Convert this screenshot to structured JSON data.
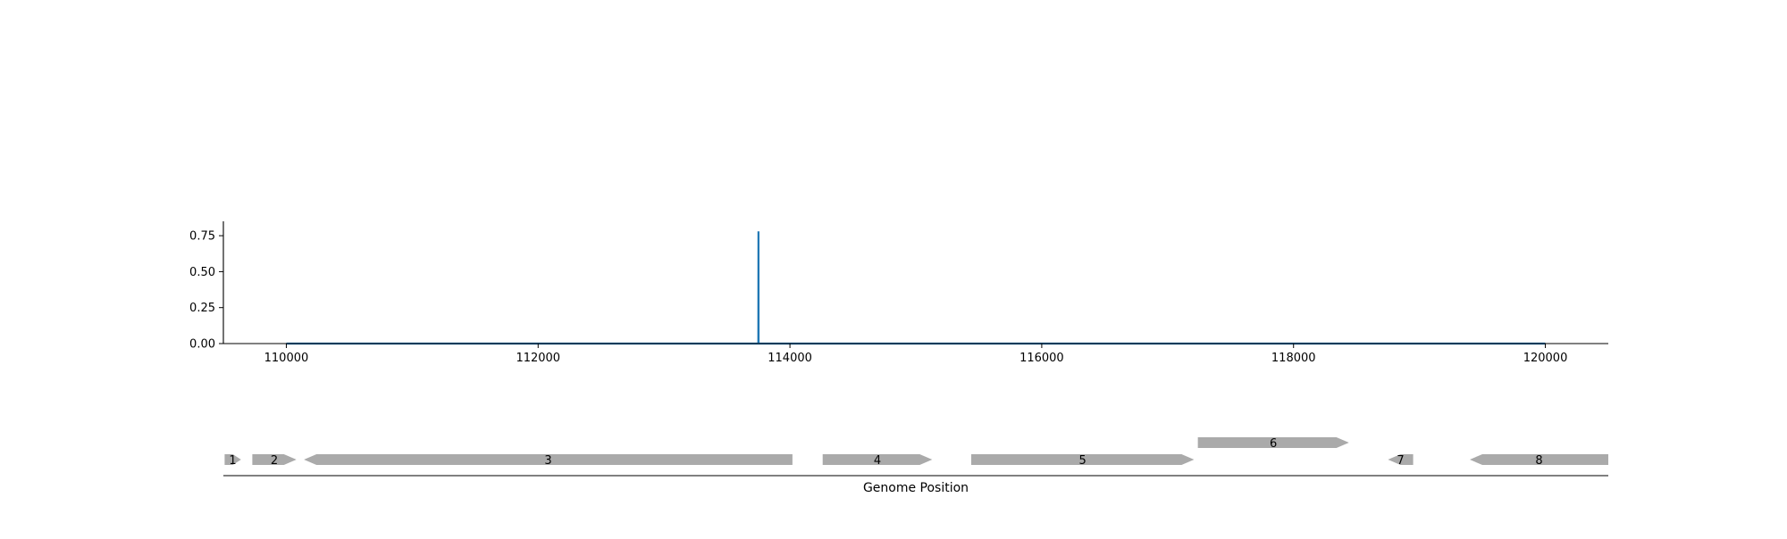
{
  "chart_data": [
    {
      "type": "line",
      "title": "",
      "xlabel": "",
      "ylabel": "",
      "xlim": [
        109500,
        120500
      ],
      "ylim": [
        0,
        0.85
      ],
      "xticks": [
        110000,
        112000,
        114000,
        116000,
        118000,
        120000
      ],
      "xtick_labels": [
        "110000",
        "112000",
        "114000",
        "116000",
        "118000",
        "120000"
      ],
      "yticks": [
        0,
        0.25,
        0.5,
        0.75
      ],
      "ytick_labels": [
        "0.00",
        "0.25",
        "0.50",
        "0.75"
      ],
      "grid": false,
      "series": [
        {
          "color": "#1f77b4",
          "x": [
            110000,
            113749,
            113750,
            113751,
            120000
          ],
          "y": [
            0,
            0,
            0.78,
            0,
            0
          ]
        }
      ]
    },
    {
      "type": "gene_map",
      "xlabel": "Genome Position",
      "xlim": [
        109500,
        120500
      ],
      "feature_color": "#aaaaaa",
      "features": [
        {
          "label": "1",
          "start": 109510,
          "end": 109640,
          "strand": "+",
          "track": 0
        },
        {
          "label": "2",
          "start": 109730,
          "end": 110080,
          "strand": "+",
          "track": 0
        },
        {
          "label": "3",
          "start": 110140,
          "end": 114020,
          "strand": "-",
          "track": 0
        },
        {
          "label": "4",
          "start": 114260,
          "end": 115130,
          "strand": "+",
          "track": 0
        },
        {
          "label": "5",
          "start": 115440,
          "end": 117210,
          "strand": "+",
          "track": 0
        },
        {
          "label": "6",
          "start": 117240,
          "end": 118440,
          "strand": "+",
          "track": 1
        },
        {
          "label": "7",
          "start": 118750,
          "end": 118950,
          "strand": "-",
          "track": 0
        },
        {
          "label": "8",
          "start": 119400,
          "end": 120500,
          "strand": "-",
          "track": 0
        }
      ]
    }
  ]
}
